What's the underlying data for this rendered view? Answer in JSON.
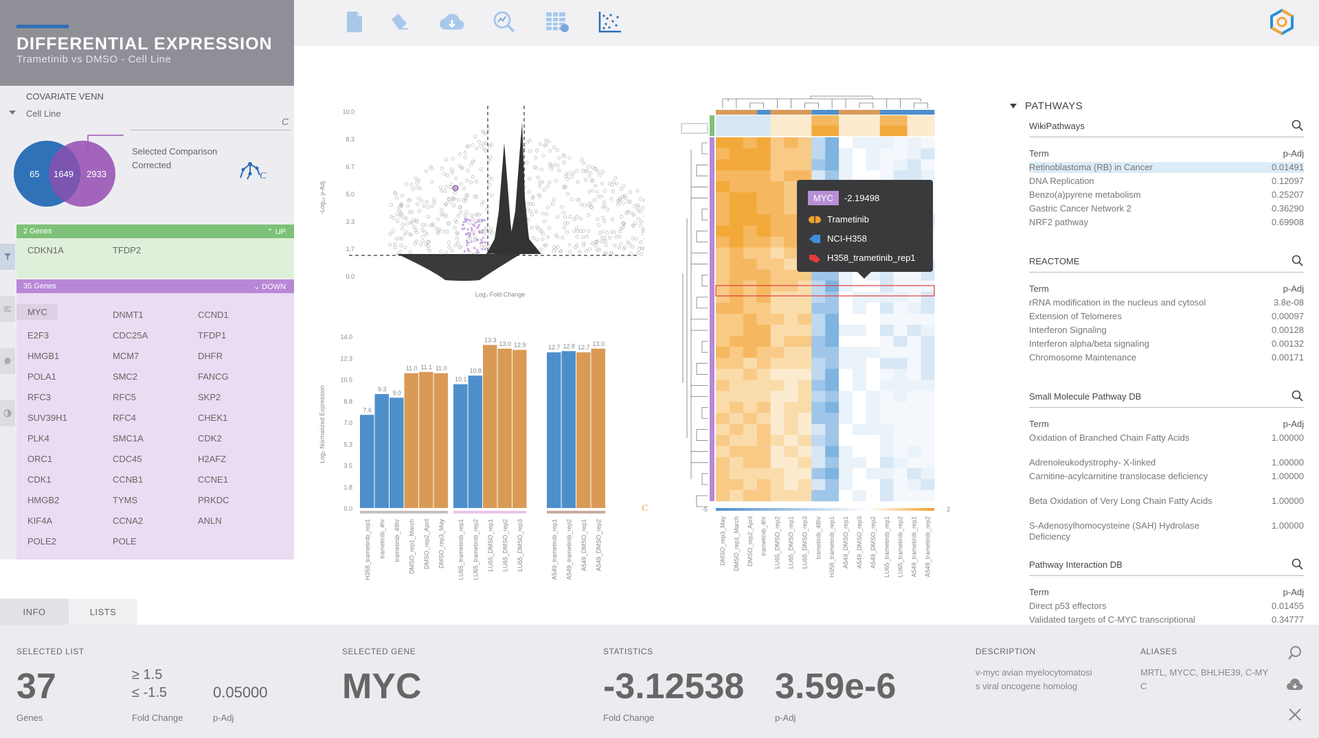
{
  "header": {
    "title": "DIFFERENTIAL EXPRESSION",
    "subtitle": "Trametinib vs DMSO - Cell Line"
  },
  "toolbar": {
    "icons": [
      "file-icon",
      "eraser-icon",
      "cloud-download-icon",
      "search-chart-icon",
      "table-view-icon",
      "scatter-plot-icon",
      "logo-icon"
    ]
  },
  "covariate": {
    "title": "COVARIATE VENN",
    "selected": "Cell Line",
    "venn": {
      "left": "65",
      "middle": "1649",
      "right": "2933"
    },
    "comparison_label": "Selected Comparison",
    "corrected_label": "Corrected",
    "c_glyph": "C"
  },
  "up_list": {
    "count_label": "2 Genes",
    "direction": "UP",
    "genes": [
      "CDKN1A",
      "TFDP2"
    ]
  },
  "down_list": {
    "count_label": "35 Genes",
    "direction": "DOWN",
    "genes": [
      "MYC",
      "DNMT1",
      "CCND1",
      "E2F3",
      "CDC25A",
      "TFDP1",
      "HMGB1",
      "MCM7",
      "DHFR",
      "POLA1",
      "SMC2",
      "FANCG",
      "RFC3",
      "RFC5",
      "SKP2",
      "SUV39H1",
      "RFC4",
      "CHEK1",
      "PLK4",
      "SMC1A",
      "CDK2",
      "ORC1",
      "CDC45",
      "H2AFZ",
      "CDK1",
      "CCNB1",
      "CCNE1",
      "HMGB2",
      "TYMS",
      "PRKDC",
      "KIF4A",
      "CCNA2",
      "ANLN",
      "POLE2",
      "POLE"
    ]
  },
  "tabs": [
    "INFO",
    "LISTS"
  ],
  "bottom": {
    "selected_list_label": "SELECTED LIST",
    "selected_list_count": "37",
    "genes_label": "Genes",
    "fc_up": "≥  1.5",
    "fc_down": "≤ -1.5",
    "fold_change_label": "Fold Change",
    "padj_value": "0.05000",
    "padj_label": "p-Adj",
    "selected_gene_label": "SELECTED GENE",
    "selected_gene": "MYC",
    "statistics_label": "STATISTICS",
    "stat_fc": "-3.12538",
    "stat_padj": "3.59e-6",
    "stat_fc_label": "Fold Change",
    "stat_padj_label": "p-Adj",
    "description_label": "DESCRIPTION",
    "description_line1": "v-myc avian myelocytomatosi",
    "description_line2": "s viral oncogene homolog",
    "aliases_label": "ALIASES",
    "aliases_line1": "MRTL, MYCC, BHLHE39, C-MY",
    "aliases_line2": "C"
  },
  "volcano": {
    "ylabel": "-Log₁₀ p-Adj",
    "xlabel": "Log₂ Fold Change",
    "yticks": [
      "10.0",
      "8.3",
      "6.7",
      "5.0",
      "3.3",
      "1.7",
      "0.0"
    ]
  },
  "barchart": {
    "ylabel": "Log₂ Normalized Expression",
    "yticks": [
      "14.0",
      "12.3",
      "10.5",
      "8.8",
      "7.0",
      "5.3",
      "3.5",
      "1.8",
      "0.0"
    ],
    "c_glyph": "C"
  },
  "heatmap": {
    "scale_min": "-5",
    "scale_max": "2",
    "columns": [
      "DMSO_rep3_May",
      "DMSO_rep1_March",
      "DMSO_rep2_April",
      "trametinib_4hr",
      "LU65_DMSO_rep2",
      "LU65_DMSO_rep1",
      "LU65_DMSO_rep3",
      "trametinib_48hr",
      "H358_trametinib_rep1",
      "A549_DMSO_rep1",
      "A549_DMSO_rep3",
      "A549_DMSO_rep2",
      "LU65_trametinib_rep1",
      "LU65_trametinib_rep2",
      "A549_trametinib_rep1",
      "A549_trametinib_rep2"
    ],
    "tooltip": {
      "gene": "MYC",
      "value": "-2.19498",
      "treatment": "Trametinib",
      "cell_line": "NCI-H358",
      "sample": "H358_trametinib_rep1"
    }
  },
  "chart_data": [
    {
      "type": "bar",
      "categories": [
        "H358_trametinib_rep1",
        "trametinib_4hr",
        "trametinib_48hr",
        "DMSO_rep1_March",
        "DMSO_rep2_April",
        "DMSO_rep3_May",
        "LU65_trametinib_rep1",
        "LU65_trametinib_rep2",
        "LU65_DMSO_rep1",
        "LU65_DMSO_rep2",
        "LU65_DMSO_rep3",
        "A549_trametinib_rep1",
        "A549_trametinib_rep2",
        "A549_DMSO_rep1",
        "A549_DMSO_rep2"
      ],
      "values": [
        7.6,
        9.3,
        9.0,
        11.0,
        11.1,
        11.0,
        10.1,
        10.8,
        13.3,
        13.0,
        12.9,
        12.7,
        12.8,
        12.7,
        13.0
      ],
      "value_labels": [
        "7.6",
        "9.3",
        "9.0",
        "11.0",
        "11.1",
        "11.0",
        "10.1",
        "10.8",
        "13.3",
        "13.0",
        "12.9",
        "12.7",
        "12.8",
        "12.7",
        "13.0"
      ],
      "colors": [
        "#4e8fcb",
        "#4e8fcb",
        "#4e8fcb",
        "#d99a56",
        "#d99a56",
        "#d99a56",
        "#4e8fcb",
        "#4e8fcb",
        "#d99a56",
        "#d99a56",
        "#d99a56",
        "#4e8fcb",
        "#4e8fcb",
        "#d99a56",
        "#d99a56"
      ],
      "groups": [
        3,
        3,
        2,
        3,
        2,
        2
      ],
      "ylabel": "Log₂ Normalized Expression",
      "ylim": [
        0,
        14
      ]
    }
  ],
  "pathways": {
    "title": "PATHWAYS",
    "term_header": "Term",
    "padj_header": "p-Adj",
    "dbs": [
      {
        "name": "WikiPathways",
        "rows": [
          [
            "Retinoblastoma (RB) in Cancer",
            "0.01491"
          ],
          [
            "DNA Replication",
            "0.12097"
          ],
          [
            "Benzo(a)pyrene metabolism",
            "0.25207"
          ],
          [
            "Gastric Cancer Network 2",
            "0.36290"
          ],
          [
            "NRF2 pathway",
            "0.69908"
          ]
        ]
      },
      {
        "name": "REACTOME",
        "rows": [
          [
            "rRNA modification in the nucleus and cytosol",
            "3.8e-08"
          ],
          [
            "Extension of Telomeres",
            "0.00097"
          ],
          [
            "Interferon Signaling",
            "0.00128"
          ],
          [
            "Interferon alpha/beta signaling",
            "0.00132"
          ],
          [
            "Chromosome Maintenance",
            "0.00171"
          ]
        ]
      },
      {
        "name": "Small Molecule Pathway DB",
        "rows": [
          [
            "Oxidation of Branched Chain Fatty Acids",
            "1.00000"
          ],
          [
            "Adrenoleukodystrophy- X-linked",
            "1.00000"
          ],
          [
            "Carnitine-acylcarnitine translocase deficiency",
            "1.00000"
          ],
          [
            "Beta Oxidation of Very Long Chain Fatty Acids",
            "1.00000"
          ],
          [
            "S-Adenosylhomocysteine (SAH) Hydrolase Deficiency",
            "1.00000"
          ]
        ]
      },
      {
        "name": "Pathway Interaction DB",
        "rows": [
          [
            "Direct p53 effectors",
            "0.01455"
          ],
          [
            "Validated targets of C-MYC transcriptional",
            "0.34777"
          ]
        ]
      }
    ]
  }
}
